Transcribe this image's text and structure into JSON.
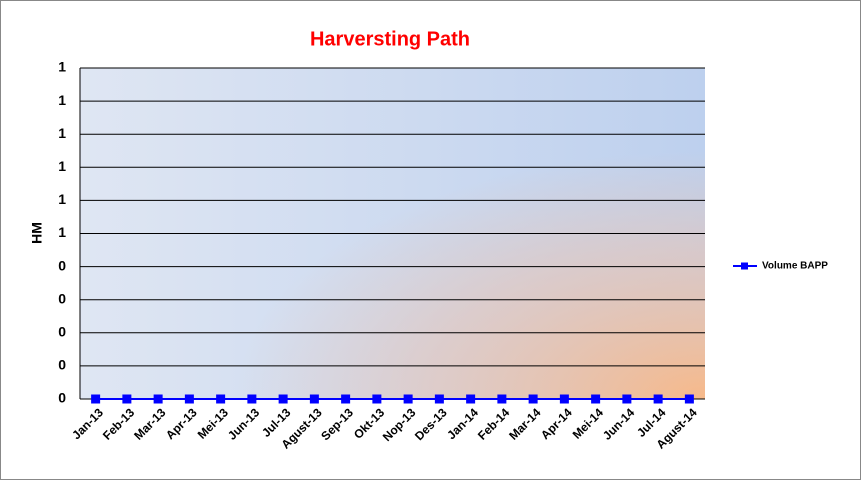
{
  "chart_data": {
    "type": "line",
    "title": "Harversting Path",
    "y_label": "HM",
    "categories": [
      "Jan-13",
      "Feb-13",
      "Mar-13",
      "Apr-13",
      "Mei-13",
      "Jun-13",
      "Jul-13",
      "Agust-13",
      "Sep-13",
      "Okt-13",
      "Nop-13",
      "Des-13",
      "Jan-14",
      "Feb-14",
      "Mar-14",
      "Apr-14",
      "Mei-14",
      "Jun-14",
      "Jul-14",
      "Agust-14"
    ],
    "series": [
      {
        "name": "Volume BAPP",
        "color": "#0000ff",
        "values": [
          0,
          0,
          0,
          0,
          0,
          0,
          0,
          0,
          0,
          0,
          0,
          0,
          0,
          0,
          0,
          0,
          0,
          0,
          0,
          0
        ]
      }
    ],
    "ylim": [
      0,
      1
    ],
    "yticks": [
      {
        "value": 0,
        "label": "0"
      },
      {
        "value": 0.1,
        "label": "0"
      },
      {
        "value": 0.2,
        "label": "0"
      },
      {
        "value": 0.3,
        "label": "0"
      },
      {
        "value": 0.4,
        "label": "0"
      },
      {
        "value": 0.5,
        "label": "1"
      },
      {
        "value": 0.6,
        "label": "1"
      },
      {
        "value": 0.7,
        "label": "1"
      },
      {
        "value": 0.8,
        "label": "1"
      },
      {
        "value": 0.9,
        "label": "1"
      },
      {
        "value": 1,
        "label": "1"
      }
    ],
    "grid": true,
    "legend": "right"
  }
}
